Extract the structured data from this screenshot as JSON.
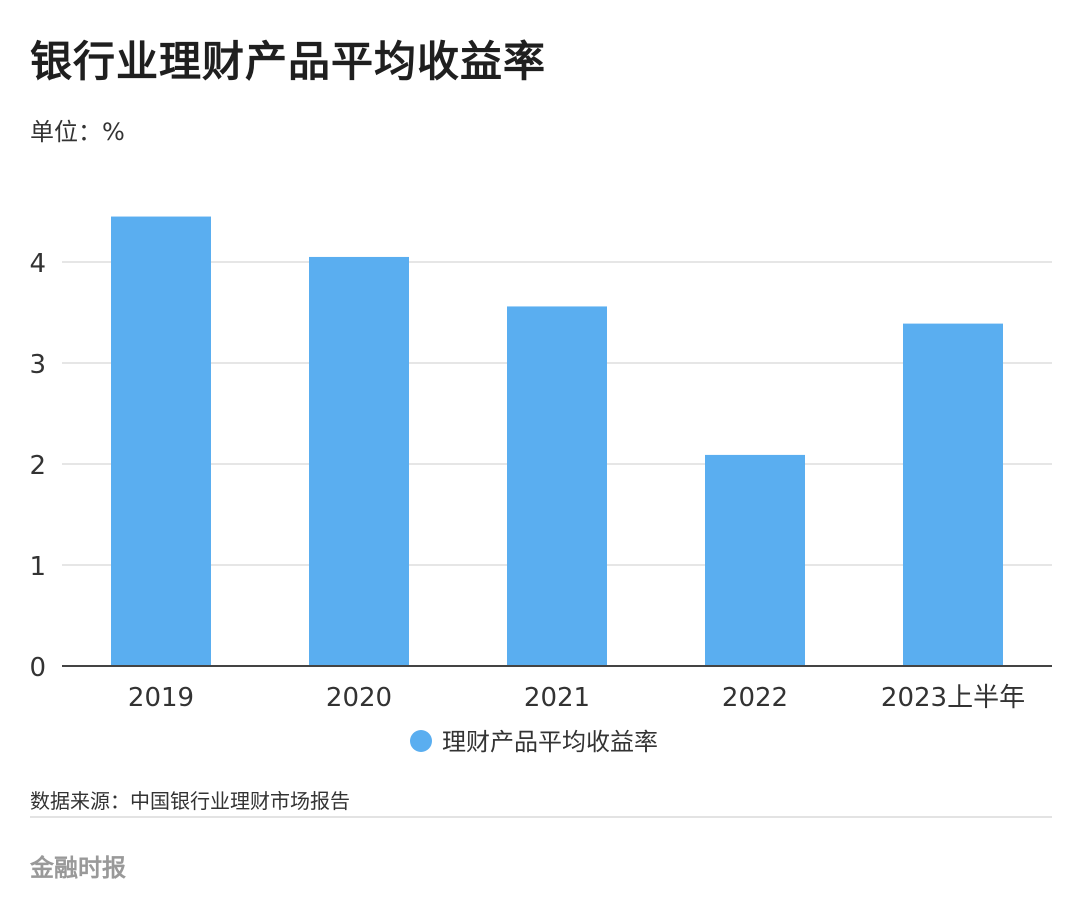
{
  "header": {
    "title": "银行业理财产品平均收益率",
    "unit": "单位：%"
  },
  "chart_data": {
    "type": "bar",
    "title": "银行业理财产品平均收益率",
    "categories": [
      "2019",
      "2020",
      "2021",
      "2022",
      "2023上半年"
    ],
    "series": [
      {
        "name": "理财产品平均收益率",
        "values": [
          4.45,
          4.05,
          3.56,
          2.09,
          3.39
        ]
      }
    ],
    "ylim": [
      0,
      4.8
    ],
    "yticks": [
      0,
      1,
      2,
      3,
      4
    ],
    "grid": true,
    "legend": "bottom-center",
    "color": "#5aaef0"
  },
  "footer": {
    "source": "数据来源：中国银行业理财市场报告",
    "brand": "金融时报"
  }
}
